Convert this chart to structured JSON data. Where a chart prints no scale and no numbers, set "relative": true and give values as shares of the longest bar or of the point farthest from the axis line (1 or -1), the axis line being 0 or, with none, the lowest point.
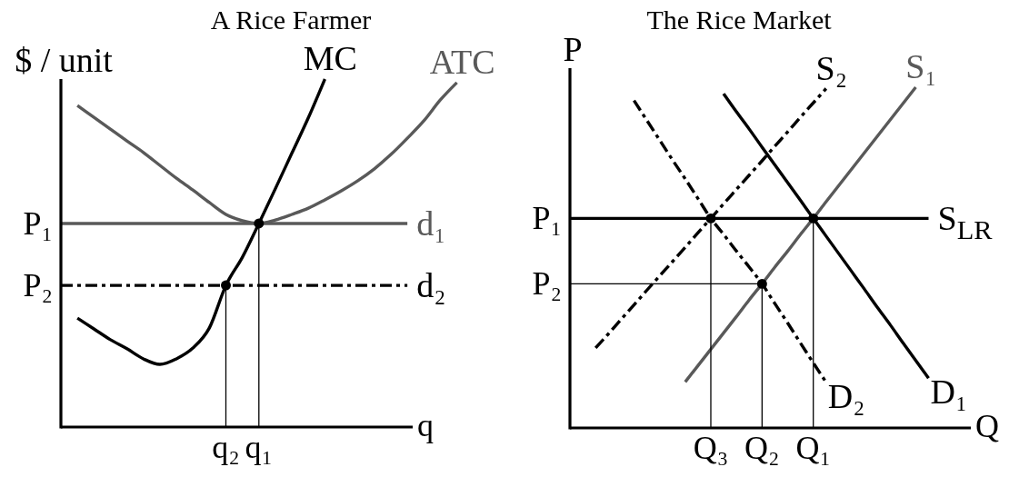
{
  "chart_data": [
    {
      "type": "line",
      "title": "A Rice Farmer",
      "xlabel": "q",
      "ylabel": "$ / unit",
      "relative": true,
      "categories": [
        null,
        null,
        null,
        null,
        null,
        null,
        null,
        null,
        null,
        null,
        "q₂",
        null,
        "q₁",
        null,
        null,
        null,
        null,
        null,
        null,
        null,
        null,
        null,
        null,
        null,
        null
      ],
      "annotations": [
        "P₁",
        "P₂"
      ],
      "series": [
        {
          "name": "MC",
          "color": "#000000",
          "values": [
            null,
            0.313,
            0.282,
            0.251,
            0.225,
            0.196,
            0.18,
            0.196,
            0.227,
            0.285,
            0.407,
            0.488,
            0.585,
            0.685,
            0.787,
            0.889,
            1.0,
            null,
            null,
            null,
            null,
            null,
            null,
            null,
            null
          ]
        },
        {
          "name": "ATC",
          "color": "#595959",
          "values": [
            null,
            0.924,
            0.89,
            0.856,
            0.822,
            0.789,
            0.752,
            0.715,
            0.681,
            0.645,
            0.611,
            0.593,
            0.585,
            0.595,
            0.611,
            0.629,
            0.653,
            0.679,
            0.708,
            0.742,
            0.783,
            0.83,
            0.88,
            0.94,
            0.99
          ]
        },
        {
          "name": "d₁",
          "color": "#595959",
          "values": [
            0.585,
            0.585,
            0.585,
            0.585,
            0.585,
            0.585,
            0.585,
            0.585,
            0.585,
            0.585,
            0.585,
            0.585,
            0.585,
            0.585,
            0.585,
            0.585,
            0.585,
            0.585,
            0.585,
            0.585,
            0.585,
            0.585,
            null,
            null,
            null
          ]
        },
        {
          "name": "d₂",
          "color": "#000000",
          "line_style": "dashdot",
          "values": [
            0.407,
            0.407,
            0.407,
            0.407,
            0.407,
            0.407,
            0.407,
            0.407,
            0.407,
            0.407,
            0.407,
            0.407,
            0.407,
            0.407,
            0.407,
            0.407,
            0.407,
            0.407,
            0.407,
            0.407,
            0.407,
            0.407,
            null,
            null,
            null
          ]
        },
        {
          "type": "lollipop",
          "marker": "circle",
          "color": "#000000",
          "values": [
            null,
            null,
            null,
            null,
            null,
            null,
            null,
            null,
            null,
            null,
            0.407,
            null,
            0.585,
            null,
            null,
            null,
            null,
            null,
            null,
            null,
            null,
            null,
            null,
            null,
            null
          ]
        }
      ]
    },
    {
      "type": "line",
      "title": "The Rice Market",
      "xlabel": "Q",
      "ylabel": "P",
      "relative": true,
      "categories": [
        null,
        null,
        null,
        null,
        null,
        null,
        null,
        null,
        null,
        null,
        null,
        "Q₃",
        null,
        null,
        null,
        "Q₂",
        null,
        null,
        null,
        "Q₁",
        null,
        null,
        null,
        null,
        null,
        null,
        null,
        null,
        null
      ],
      "annotations": [
        "P₁",
        "P₂"
      ],
      "series": [
        {
          "name": "S$_{LR}$",
          "color": "#000000",
          "values": [
            0.615,
            0.615,
            0.615,
            0.615,
            0.615,
            0.615,
            0.615,
            0.615,
            0.615,
            0.615,
            0.615,
            0.615,
            0.615,
            0.615,
            0.615,
            0.615,
            0.615,
            0.615,
            0.615,
            0.615,
            0.615,
            0.615,
            0.615,
            0.615,
            0.615,
            0.615,
            0.615,
            0.615,
            0.615
          ]
        },
        {
          "name": "S₂",
          "color": "#000000",
          "line_style": "dashdot",
          "values": [
            null,
            null,
            0.235,
            0.276,
            0.319,
            0.361,
            0.404,
            0.446,
            0.488,
            0.53,
            0.573,
            0.615,
            0.658,
            0.7,
            0.742,
            0.784,
            0.827,
            0.869,
            0.912,
            0.954,
            0.996,
            null,
            null,
            null,
            null,
            null,
            null,
            null,
            null
          ]
        },
        {
          "name": "S₁",
          "color": "#595959",
          "values": [
            null,
            null,
            null,
            null,
            null,
            null,
            null,
            null,
            null,
            0.135,
            0.183,
            0.231,
            0.279,
            0.327,
            0.376,
            0.423,
            0.472,
            0.519,
            0.568,
            0.615,
            0.664,
            0.712,
            0.76,
            0.808,
            0.856,
            0.904,
            0.952,
            1.0,
            null
          ]
        },
        {
          "name": "D₁",
          "color": "#000000",
          "values": [
            null,
            null,
            null,
            null,
            null,
            null,
            null,
            null,
            null,
            null,
            null,
            null,
            0.981,
            0.928,
            0.877,
            0.824,
            0.772,
            0.72,
            0.668,
            0.615,
            0.563,
            0.511,
            0.459,
            0.407,
            0.354,
            0.303,
            0.25,
            0.198,
            0.146
          ]
        },
        {
          "name": "D₂",
          "color": "#000000",
          "line_style": "dashdot",
          "values": [
            null,
            null,
            null,
            null,
            null,
            0.961,
            0.903,
            0.845,
            0.787,
            0.731,
            0.673,
            0.615,
            0.568,
            0.519,
            0.472,
            0.423,
            0.365,
            0.308,
            0.249,
            0.191,
            0.134,
            null,
            null,
            null,
            null,
            null,
            null,
            null,
            null
          ]
        },
        {
          "color": "#000000",
          "values": [
            0.423,
            0.423,
            0.423,
            0.423,
            0.423,
            0.423,
            0.423,
            0.423,
            0.423,
            0.423,
            0.423,
            0.423,
            0.423,
            0.423,
            0.423,
            0.423,
            null,
            null,
            null,
            null,
            null,
            null,
            null,
            null,
            null,
            null,
            null,
            null,
            null
          ]
        },
        {
          "type": "lollipop",
          "marker": "circle",
          "color": "#000000",
          "values": [
            null,
            null,
            null,
            null,
            null,
            null,
            null,
            null,
            null,
            null,
            null,
            0.615,
            null,
            null,
            null,
            0.423,
            null,
            null,
            null,
            0.615,
            null,
            null,
            null,
            null,
            null,
            null,
            null,
            null,
            null
          ]
        }
      ]
    }
  ]
}
